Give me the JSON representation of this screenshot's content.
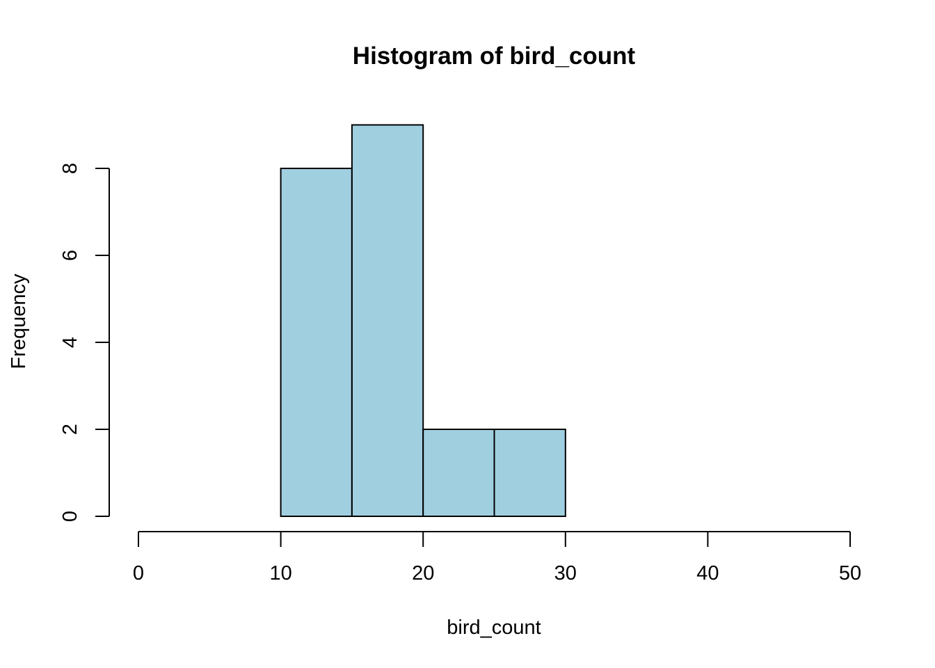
{
  "chart_data": {
    "type": "histogram",
    "title": "Histogram of bird_count",
    "xlabel": "bird_count",
    "ylabel": "Frequency",
    "bins": [
      {
        "start": 10,
        "end": 15,
        "count": 8
      },
      {
        "start": 15,
        "end": 20,
        "count": 9
      },
      {
        "start": 20,
        "end": 25,
        "count": 2
      },
      {
        "start": 25,
        "end": 30,
        "count": 2
      }
    ],
    "xlim": [
      0,
      50
    ],
    "ylim": [
      0,
      9
    ],
    "x_ticks": [
      0,
      10,
      20,
      30,
      40,
      50
    ],
    "y_ticks": [
      0,
      2,
      4,
      6,
      8
    ],
    "bar_color": "#a0cfe0",
    "grid": false,
    "legend": "none"
  }
}
